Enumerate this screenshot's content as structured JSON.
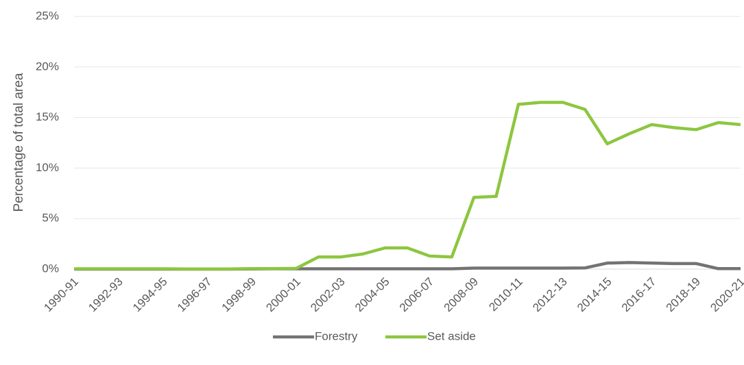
{
  "chart_data": {
    "type": "line",
    "y_label": "Percentage of total area",
    "categories": [
      "1990-91",
      null,
      "1992-93",
      null,
      "1994-95",
      null,
      "1996-97",
      null,
      "1998-99",
      null,
      "2000-01",
      null,
      "2002-03",
      null,
      "2004-05",
      null,
      "2006-07",
      null,
      "2008-09",
      null,
      "2010-11",
      null,
      "2012-13",
      null,
      "2014-15",
      null,
      "2016-17",
      null,
      "2018-19",
      null,
      "2020-21"
    ],
    "series": [
      {
        "name": "Forestry",
        "color": "#737373",
        "values": [
          0,
          0,
          0,
          0,
          0,
          0,
          0,
          0,
          0.02,
          0.03,
          0.03,
          0.03,
          0.03,
          0.03,
          0.03,
          0.03,
          0.03,
          0.03,
          0.1,
          0.1,
          0.1,
          0.1,
          0.1,
          0.12,
          0.6,
          0.65,
          0.6,
          0.55,
          0.55,
          0.05,
          0.05
        ]
      },
      {
        "name": "Set aside",
        "color": "#8dc63f",
        "values": [
          0.03,
          0.03,
          0.03,
          0.03,
          0.03,
          0.02,
          0.02,
          0.02,
          0.05,
          0.05,
          0.08,
          1.2,
          1.2,
          1.5,
          2.1,
          2.1,
          1.3,
          1.2,
          7.1,
          7.2,
          16.3,
          16.5,
          16.5,
          15.8,
          12.4,
          13.4,
          14.3,
          14.0,
          13.8,
          14.5,
          14.3
        ]
      }
    ],
    "ylim": [
      0,
      25
    ],
    "yticks": [
      {
        "value": 0,
        "label": "0%"
      },
      {
        "value": 5,
        "label": "5%"
      },
      {
        "value": 10,
        "label": "10%"
      },
      {
        "value": 15,
        "label": "15%"
      },
      {
        "value": 20,
        "label": "20%"
      },
      {
        "value": 25,
        "label": "25%"
      }
    ],
    "grid": true,
    "legend": "bottom"
  }
}
